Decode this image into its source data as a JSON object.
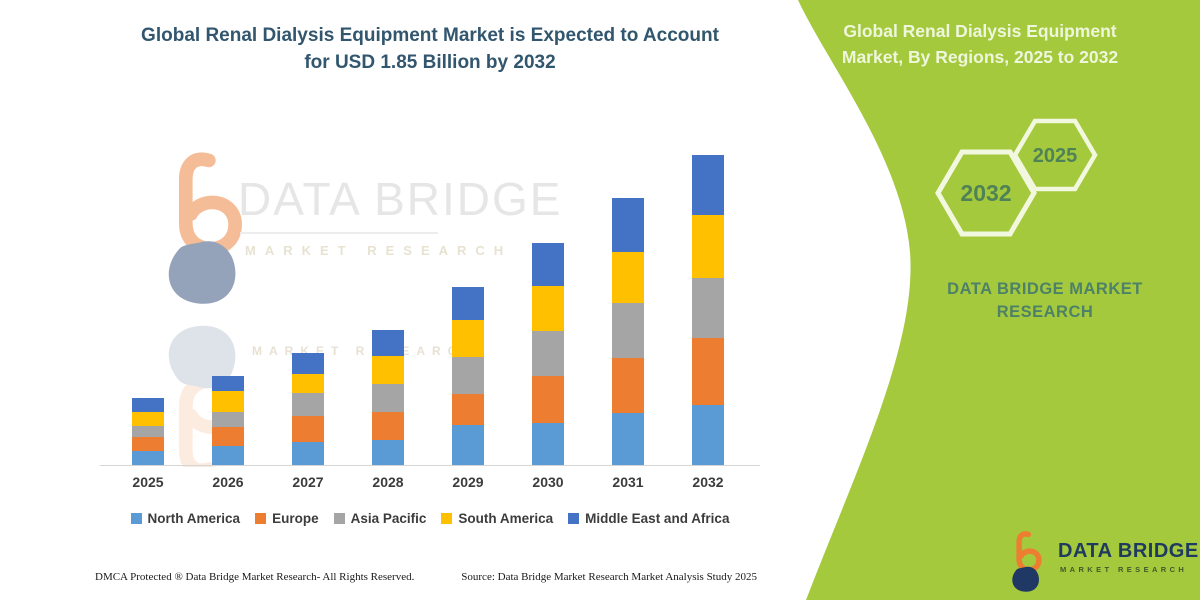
{
  "title": {
    "line1": "Global Renal Dialysis Equipment Market is Expected to Account",
    "line2": "for USD 1.85 Billion by 2032"
  },
  "panel": {
    "header_line1": "Global Renal Dialysis Equipment",
    "header_line2": "Market, By Regions, 2025 to 2032",
    "hexagons": [
      {
        "label": "2032"
      },
      {
        "label": "2025"
      }
    ],
    "brand_line1": "DATA BRIDGE MARKET",
    "brand_line2": "RESEARCH"
  },
  "watermark": {
    "line1": "DATA BRIDGE",
    "line2": "MARKET RESEARCH"
  },
  "logo": {
    "name": "DATA BRIDGE",
    "sub": "MARKET RESEARCH"
  },
  "footer": {
    "left": "DMCA Protected ® Data Bridge Market Research-  All Rights Reserved.",
    "right": "Source: Data Bridge Market Research  Market Analysis Study 2025"
  },
  "colors": {
    "panel_green": "#A5C93C",
    "title_navy": "#31566E",
    "logo_navy": "#1E3A5F",
    "logo_orange": "#ED7D31"
  },
  "chart_data": {
    "type": "bar",
    "stacked": true,
    "title": "Global Renal Dialysis Equipment Market is Expected to Account for USD 1.85 Billion by 2032",
    "xlabel": "",
    "ylabel": "",
    "units": "relative height (no value axis shown); totals grow to USD 1.85 Billion by 2032",
    "grid": false,
    "legend_position": "bottom",
    "ylim": [
      0,
      327
    ],
    "categories": [
      "2025",
      "2026",
      "2027",
      "2028",
      "2029",
      "2030",
      "2031",
      "2032"
    ],
    "series": [
      {
        "name": "North America",
        "color": "#5B9BD5",
        "values": [
          14,
          19,
          23,
          25,
          40,
          42,
          52,
          60
        ]
      },
      {
        "name": "Europe",
        "color": "#ED7D31",
        "values": [
          14,
          19,
          26,
          28,
          31,
          47,
          55,
          67
        ]
      },
      {
        "name": "Asia Pacific",
        "color": "#A5A5A5",
        "values": [
          11,
          15,
          23,
          28,
          37,
          45,
          55,
          60
        ]
      },
      {
        "name": "South America",
        "color": "#FFC000",
        "values": [
          14,
          21,
          19,
          28,
          37,
          45,
          51,
          63
        ]
      },
      {
        "name": "Middle East and Africa",
        "color": "#4472C4",
        "values": [
          14,
          15,
          21,
          26,
          33,
          43,
          54,
          60
        ]
      }
    ],
    "totals": [
      67,
      89,
      112,
      135,
      178,
      222,
      267,
      310
    ]
  }
}
